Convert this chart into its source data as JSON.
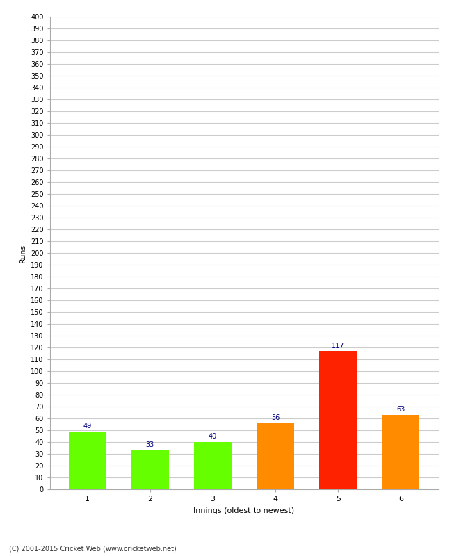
{
  "categories": [
    "1",
    "2",
    "3",
    "4",
    "5",
    "6"
  ],
  "values": [
    49,
    33,
    40,
    56,
    117,
    63
  ],
  "bar_colors": [
    "#66ff00",
    "#66ff00",
    "#66ff00",
    "#ff8c00",
    "#ff2200",
    "#ff8c00"
  ],
  "ylabel": "Runs",
  "xlabel": "Innings (oldest to newest)",
  "ylim": [
    0,
    400
  ],
  "yticks": [
    0,
    10,
    20,
    30,
    40,
    50,
    60,
    70,
    80,
    90,
    100,
    110,
    120,
    130,
    140,
    150,
    160,
    170,
    180,
    190,
    200,
    210,
    220,
    230,
    240,
    250,
    260,
    270,
    280,
    290,
    300,
    310,
    320,
    330,
    340,
    350,
    360,
    370,
    380,
    390,
    400
  ],
  "label_color": "#000080",
  "label_fontsize": 7,
  "footer": "(C) 2001-2015 Cricket Web (www.cricketweb.net)",
  "background_color": "#ffffff",
  "grid_color": "#cccccc",
  "bar_width": 0.6
}
